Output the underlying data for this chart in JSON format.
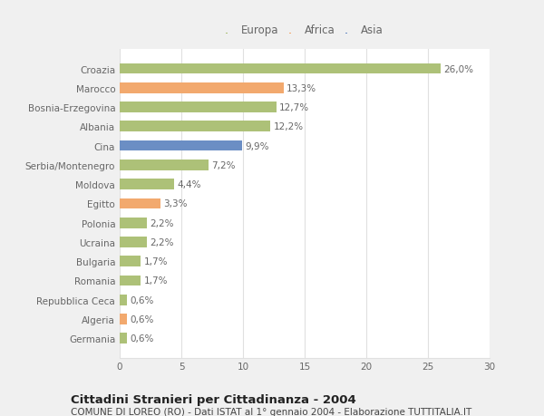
{
  "categories": [
    "Croazia",
    "Marocco",
    "Bosnia-Erzegovina",
    "Albania",
    "Cina",
    "Serbia/Montenegro",
    "Moldova",
    "Egitto",
    "Polonia",
    "Ucraina",
    "Bulgaria",
    "Romania",
    "Repubblica Ceca",
    "Algeria",
    "Germania"
  ],
  "values": [
    26.0,
    13.3,
    12.7,
    12.2,
    9.9,
    7.2,
    4.4,
    3.3,
    2.2,
    2.2,
    1.7,
    1.7,
    0.6,
    0.6,
    0.6
  ],
  "labels": [
    "26,0%",
    "13,3%",
    "12,7%",
    "12,2%",
    "9,9%",
    "7,2%",
    "4,4%",
    "3,3%",
    "2,2%",
    "2,2%",
    "1,7%",
    "1,7%",
    "0,6%",
    "0,6%",
    "0,6%"
  ],
  "continents": [
    "Europa",
    "Africa",
    "Europa",
    "Europa",
    "Asia",
    "Europa",
    "Europa",
    "Africa",
    "Europa",
    "Europa",
    "Europa",
    "Europa",
    "Europa",
    "Africa",
    "Europa"
  ],
  "colors": {
    "Europa": "#adc178",
    "Africa": "#f2a96e",
    "Asia": "#6b8ec4"
  },
  "xlim": [
    0,
    30
  ],
  "xticks": [
    0,
    5,
    10,
    15,
    20,
    25,
    30
  ],
  "title": "Cittadini Stranieri per Cittadinanza - 2004",
  "subtitle": "COMUNE DI LOREO (RO) - Dati ISTAT al 1° gennaio 2004 - Elaborazione TUTTITALIA.IT",
  "figure_bg": "#f0f0f0",
  "plot_bg": "#ffffff",
  "grid_color": "#e0e0e0",
  "label_color": "#666666",
  "title_fontsize": 9.5,
  "subtitle_fontsize": 7.5,
  "label_fontsize": 7.5,
  "tick_fontsize": 7.5,
  "legend_fontsize": 8.5
}
